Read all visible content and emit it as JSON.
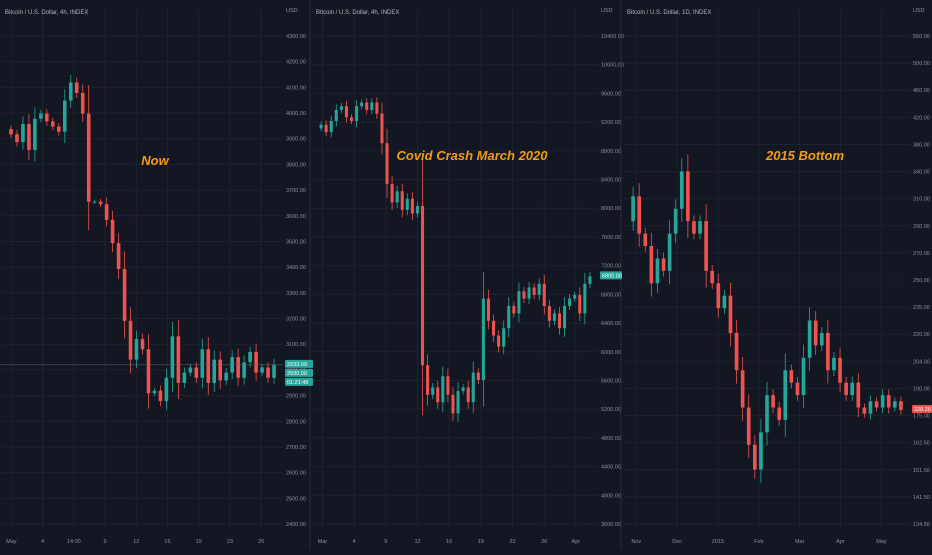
{
  "theme": {
    "background": "#131722",
    "grid": "#1e2230",
    "divider": "#2a2e39",
    "up": "#26a69a",
    "down": "#ef5350",
    "annotation": "#f39c12",
    "axis_text": "#8d919b"
  },
  "chart_data": [
    {
      "type": "candlestick",
      "title": "Bitcoin / U.S. Dollar, 4h, INDEX",
      "currency": "USD",
      "annotation": "Now",
      "ylim": [
        2300,
        4300
      ],
      "yticks": [
        "4300.00",
        "4200.00",
        "4100.00",
        "4000.00",
        "3900.00",
        "3800.00",
        "3700.00",
        "3600.00",
        "3500.00",
        "3400.00",
        "3300.00",
        "3200.00",
        "3100.00",
        "3000.00",
        "2900.00",
        "2800.00",
        "2700.00",
        "2600.00",
        "2500.00",
        "2400.00"
      ],
      "xticks": [
        "May",
        "4",
        "14:00",
        "9",
        "12",
        "16",
        "19",
        "23",
        "26"
      ],
      "last_price_labels": [
        "2933.09",
        "2930.00",
        "01:21:45"
      ],
      "price_path": [
        3840,
        3820,
        3790,
        3860,
        3760,
        3880,
        3900,
        3870,
        3850,
        3830,
        3950,
        4020,
        3980,
        3900,
        3560,
        3560,
        3550,
        3490,
        3400,
        3300,
        3100,
        2950,
        3030,
        2990,
        2820,
        2830,
        2790,
        2880,
        3040,
        2860,
        2900,
        2920,
        2880,
        2990,
        2860,
        2950,
        2870,
        2900,
        2960,
        2880,
        2940,
        2980,
        2900,
        2920,
        2880,
        2930
      ]
    },
    {
      "type": "candlestick",
      "title": "Bitcoin / U.S. Dollar, 4h, INDEX",
      "currency": "USD",
      "annotation": "Covid Crash March 2020",
      "ylim": [
        3400,
        10400
      ],
      "yticks": [
        "10400.00",
        "10000.00",
        "9600.00",
        "9200.00",
        "8800.00",
        "8400.00",
        "8000.00",
        "7600.00",
        "7200.00",
        "6800.00",
        "6400.00",
        "6000.00",
        "5600.00",
        "5200.00",
        "4800.00",
        "4400.00",
        "4000.00",
        "3600.00"
      ],
      "xticks": [
        "Mar",
        "4",
        "9",
        "12",
        "16",
        "19",
        "23",
        "26",
        "Apr"
      ],
      "last_price_labels": [
        "6800.00"
      ],
      "price_path": [
        8800,
        8850,
        8750,
        8900,
        9050,
        9100,
        8950,
        8900,
        9100,
        9150,
        9050,
        9150,
        9000,
        8600,
        8050,
        7800,
        7950,
        7700,
        7850,
        7650,
        7750,
        5600,
        5200,
        5300,
        5100,
        5450,
        5200,
        4950,
        5250,
        5300,
        5100,
        5500,
        5400,
        6500,
        6200,
        6000,
        5850,
        6100,
        6400,
        6300,
        6600,
        6500,
        6650,
        6550,
        6700,
        6400,
        6200,
        6300,
        6100,
        6400,
        6500,
        6550,
        6300,
        6700,
        6800
      ]
    },
    {
      "type": "candlestick",
      "title": "Bitcoin / U.S. Dollar, 1D, INDEX",
      "currency": "USD",
      "annotation": "2015 Bottom",
      "ylim": [
        133,
        550
      ],
      "yticks": [
        "550.00",
        "500.00",
        "460.00",
        "420.00",
        "380.00",
        "340.00",
        "310.00",
        "290.00",
        "270.00",
        "250.00",
        "235.00",
        "220.00",
        "204.00",
        "190.00",
        "175.00",
        "162.50",
        "151.50",
        "141.50",
        "134.50"
      ],
      "xticks": [
        "Nov",
        "Dec",
        "2015",
        "Feb",
        "Mar",
        "Apr",
        "May"
      ],
      "last_price_labels": [
        "228.26"
      ],
      "price_path": [
        380,
        400,
        370,
        360,
        330,
        350,
        340,
        370,
        390,
        420,
        380,
        370,
        380,
        340,
        330,
        310,
        320,
        290,
        260,
        230,
        200,
        180,
        210,
        240,
        230,
        220,
        260,
        250,
        240,
        270,
        300,
        280,
        290,
        260,
        270,
        250,
        240,
        250,
        230,
        225,
        235,
        230,
        240,
        230,
        235,
        228
      ]
    }
  ]
}
